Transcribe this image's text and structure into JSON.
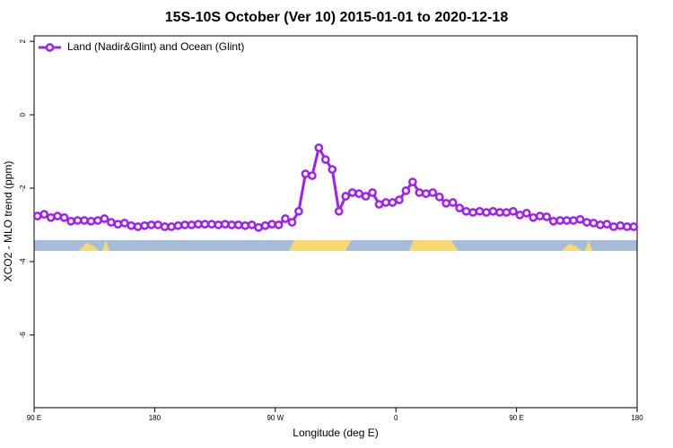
{
  "chart_data": {
    "type": "line",
    "title": "15S-10S October (Ver 10)   2015-01-01 to 2020-12-18",
    "x_label": "Longitude (deg E)",
    "y_label": "XCO2 - MLO trend (ppm)",
    "x": [
      92.5,
      97.5,
      102.5,
      107.5,
      112.5,
      117.5,
      122.5,
      127.5,
      132.5,
      137.5,
      142.5,
      147.5,
      152.5,
      157.5,
      162.5,
      167.5,
      172.5,
      177.5,
      182.5,
      187.5,
      192.5,
      197.5,
      202.5,
      207.5,
      212.5,
      217.5,
      222.5,
      227.5,
      232.5,
      237.5,
      242.5,
      247.5,
      252.5,
      257.5,
      262.5,
      267.5,
      272.5,
      277.5,
      282.5,
      287.5,
      292.5,
      297.5,
      302.5,
      307.5,
      312.5,
      317.5,
      322.5,
      327.5,
      332.5,
      337.5,
      342.5,
      347.5,
      352.5,
      357.5,
      362.5,
      367.5,
      372.5,
      377.5,
      382.5,
      387.5,
      392.5,
      397.5,
      402.5,
      407.5,
      412.5,
      417.5,
      422.5,
      427.5,
      432.5,
      437.5,
      442.5,
      447.5,
      452.5,
      457.5,
      462.5,
      467.5,
      472.5,
      477.5,
      482.5,
      487.5,
      492.5,
      497.5,
      502.5,
      507.5,
      512.5,
      517.5,
      522.5,
      527.5,
      532.5,
      537.5
    ],
    "series": [
      {
        "name": "Land (Nadir&Glint) and Ocean (Glint)",
        "color": "#a020f0",
        "values": [
          -2.76,
          -2.71,
          -2.8,
          -2.76,
          -2.8,
          -2.9,
          -2.88,
          -2.88,
          -2.9,
          -2.88,
          -2.83,
          -2.93,
          -2.98,
          -2.95,
          -3.02,
          -3.05,
          -3.02,
          -3.0,
          -3.0,
          -3.05,
          -3.05,
          -3.02,
          -3.0,
          -3.0,
          -2.98,
          -2.98,
          -2.98,
          -3.0,
          -2.98,
          -3.0,
          -3.0,
          -3.02,
          -3.0,
          -3.07,
          -3.02,
          -2.98,
          -3.0,
          -2.83,
          -2.93,
          -2.63,
          -1.61,
          -1.66,
          -0.9,
          -1.22,
          -1.49,
          -2.63,
          -2.22,
          -2.12,
          -2.15,
          -2.22,
          -2.12,
          -2.44,
          -2.39,
          -2.39,
          -2.32,
          -2.07,
          -1.83,
          -2.12,
          -2.15,
          -2.12,
          -2.24,
          -2.41,
          -2.39,
          -2.54,
          -2.63,
          -2.66,
          -2.63,
          -2.66,
          -2.63,
          -2.66,
          -2.66,
          -2.63,
          -2.73,
          -2.68,
          -2.8,
          -2.76,
          -2.78,
          -2.9,
          -2.88,
          -2.88,
          -2.88,
          -2.85,
          -2.93,
          -2.95,
          -3.0,
          -2.98,
          -3.05,
          -3.02,
          -3.05,
          -3.05
        ]
      }
    ],
    "xlim": [
      90,
      540
    ],
    "xticks": [
      {
        "value": 90,
        "label": "90 E"
      },
      180,
      {
        "value": 270,
        "label": "90 W"
      },
      {
        "value": 360,
        "label": "0"
      },
      {
        "value": 450,
        "label": "90 E"
      },
      {
        "value": 540,
        "label": "180"
      }
    ],
    "ylim": [
      -7.98,
      2.15
    ],
    "yticks": [
      2,
      0,
      -2,
      -4,
      -6
    ],
    "legend": "top-left"
  }
}
